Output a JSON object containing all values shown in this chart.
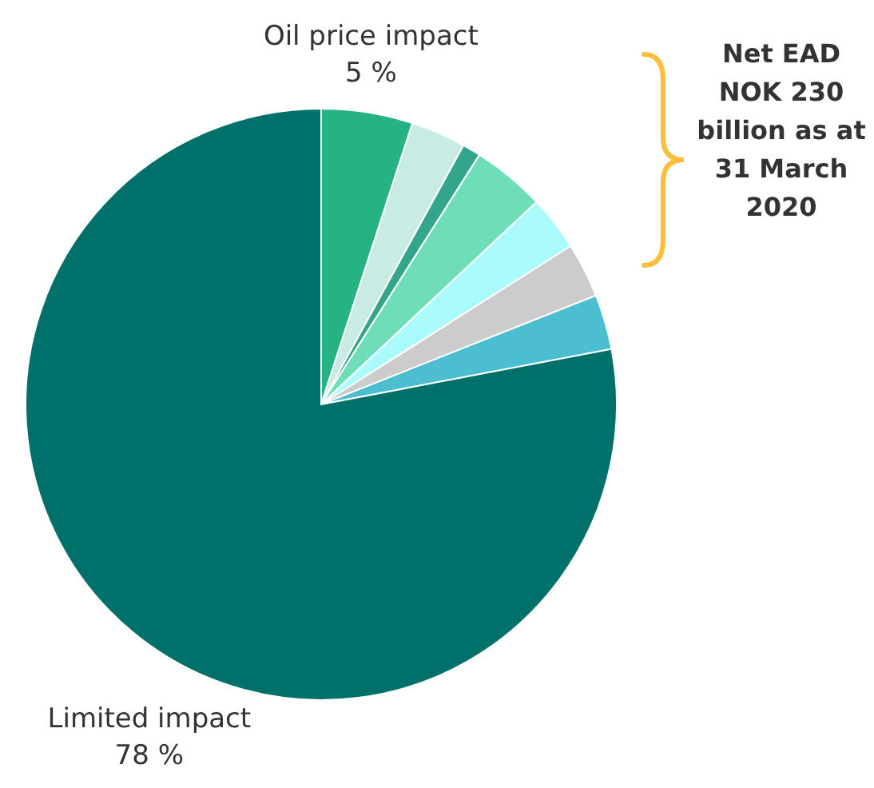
{
  "chart_data": {
    "type": "pie",
    "categories": [
      "Oil price impact",
      null,
      null,
      null,
      null,
      null,
      null,
      "Limited impact"
    ],
    "values": [
      5,
      3,
      1,
      4,
      3,
      3,
      3,
      78
    ],
    "value_labels": [
      "5 %",
      null,
      null,
      null,
      null,
      null,
      null,
      "78 %"
    ],
    "colors": [
      "#26b382",
      "#c8ebe4",
      "#33a58a",
      "#6fdeb8",
      "#aafcfc",
      "#cccccc",
      "#4bbfd0",
      "#00706b"
    ],
    "annotations": [
      "Net EAD NOK 230 billion as at 31 March 2020"
    ]
  }
}
